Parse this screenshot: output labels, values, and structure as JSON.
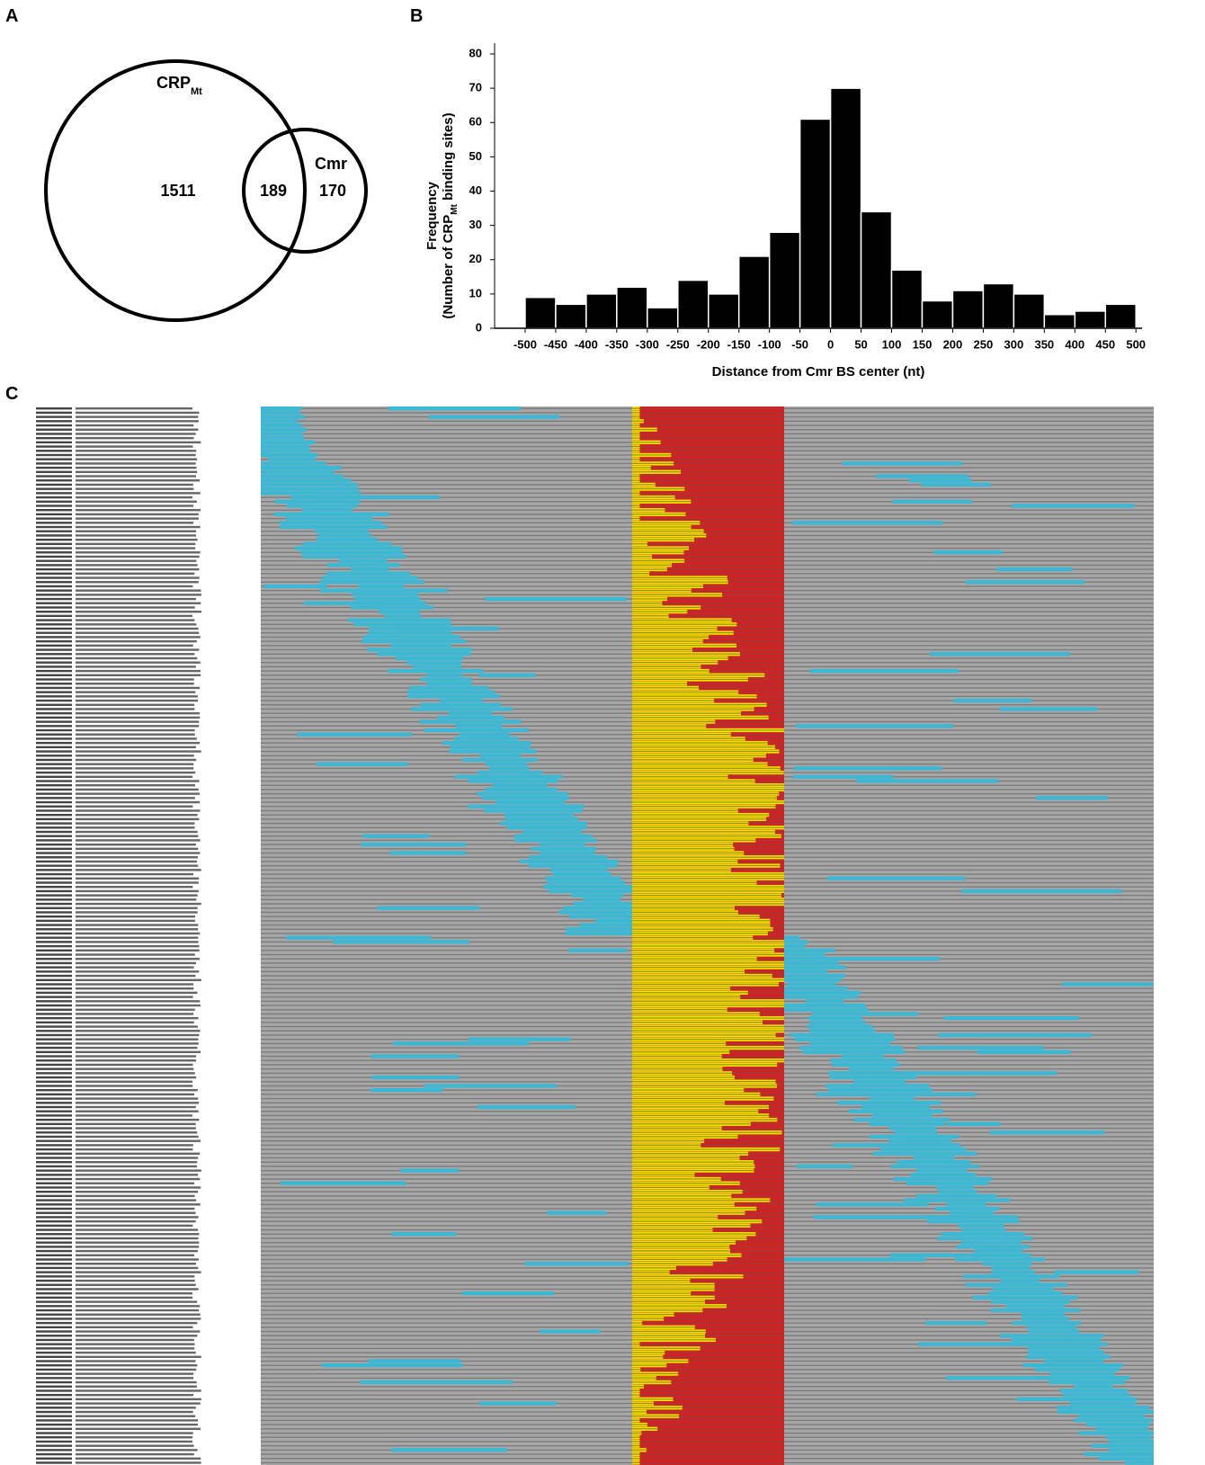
{
  "panel_labels": [
    "A",
    "B",
    "C"
  ],
  "chart_data": [
    {
      "type": "venn",
      "sets": [
        {
          "label": "CRP",
          "label_sub": "Mt"
        },
        {
          "label": "Cmr"
        }
      ],
      "values": [
        1511,
        189,
        170
      ]
    },
    {
      "type": "histogram",
      "ylabel": "Frequency",
      "ylabel_parts": [
        "(Number of CRP",
        "Mt",
        " binding sites)"
      ],
      "xlabel": "Distance from Cmr BS center (nt)",
      "bins": [
        -500,
        -450,
        -400,
        -350,
        -300,
        -250,
        -200,
        -150,
        -100,
        -50,
        0,
        50,
        100,
        150,
        200,
        250,
        300,
        350,
        400,
        450,
        500
      ],
      "values": [
        9,
        7,
        10,
        12,
        6,
        14,
        10,
        21,
        28,
        61,
        70,
        34,
        17,
        8,
        11,
        13,
        10,
        4,
        5,
        7
      ],
      "color": "#000000",
      "xlim": [
        -550,
        510
      ],
      "ylim": [
        0,
        80
      ],
      "xticks": [
        -500,
        -450,
        -400,
        -350,
        -300,
        -250,
        -200,
        -150,
        -100,
        -50,
        0,
        50,
        100,
        150,
        200,
        250,
        300,
        350,
        400,
        450,
        500
      ],
      "yticks": [
        0,
        10,
        20,
        30,
        40,
        50,
        60,
        70,
        80
      ]
    }
  ]
}
